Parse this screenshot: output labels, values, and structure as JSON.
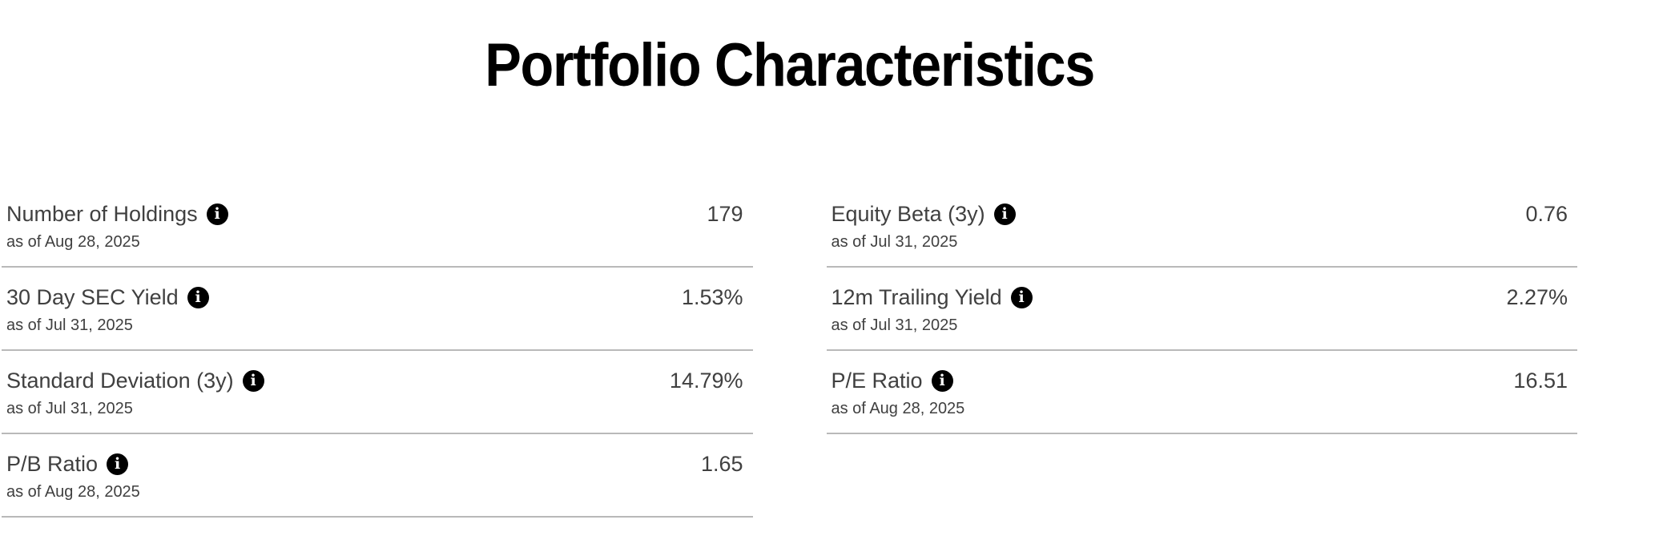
{
  "section": {
    "title": "Portfolio Characteristics"
  },
  "colors": {
    "title": "#000000",
    "text": "#404040",
    "divider": "#b9b9b9",
    "info_bg": "#000000",
    "info_fg": "#ffffff",
    "background": "#ffffff"
  },
  "icons": {
    "info_glyph": "i"
  },
  "characteristics": {
    "left": [
      {
        "label": "Number of Holdings",
        "value": "179",
        "as_of": "as of Aug 28, 2025"
      },
      {
        "label": "30 Day SEC Yield",
        "value": "1.53%",
        "as_of": "as of Jul 31, 2025"
      },
      {
        "label": "Standard Deviation (3y)",
        "value": "14.79%",
        "as_of": "as of Jul 31, 2025"
      },
      {
        "label": "P/B Ratio",
        "value": "1.65",
        "as_of": "as of Aug 28, 2025"
      }
    ],
    "right": [
      {
        "label": "Equity Beta (3y)",
        "value": "0.76",
        "as_of": "as of Jul 31, 2025"
      },
      {
        "label": "12m Trailing Yield",
        "value": "2.27%",
        "as_of": "as of Jul 31, 2025"
      },
      {
        "label": "P/E Ratio",
        "value": "16.51",
        "as_of": "as of Aug 28, 2025"
      }
    ]
  }
}
